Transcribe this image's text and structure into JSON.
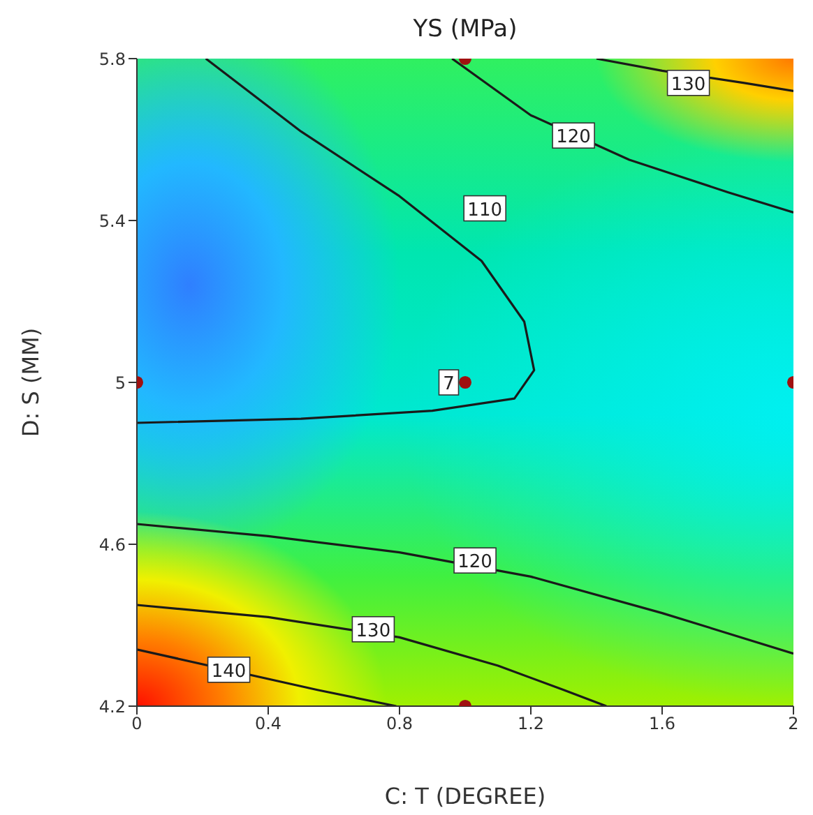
{
  "chart_data": {
    "type": "line",
    "title": "YS (MPa)",
    "xlabel": "C: T (DEGREE)",
    "ylabel": "D: S (MM)",
    "xlim": [
      0,
      2
    ],
    "xticks": [
      0,
      0.4,
      0.8,
      1.2,
      1.6,
      2
    ],
    "ylim": [
      4.2,
      5.8
    ],
    "yticks": [
      4.2,
      4.6,
      5,
      5.4,
      5.8
    ],
    "grid": false,
    "marker": "none",
    "line_style": "solid",
    "series": [
      {
        "color": "#1a1a1a",
        "x": [
          0.21,
          0.5,
          0.8,
          1.05,
          1.18,
          1.21,
          1.15,
          0.9,
          0.5,
          0
        ],
        "values": [
          5.8,
          5.62,
          5.46,
          5.3,
          5.15,
          5.03,
          4.96,
          4.93,
          4.91,
          4.9
        ]
      },
      {
        "color": "#1a1a1a",
        "x": [
          0.96,
          1.2,
          1.5,
          1.8,
          2
        ],
        "values": [
          5.8,
          5.66,
          5.55,
          5.47,
          5.42
        ]
      },
      {
        "color": "#1a1a1a",
        "x": [
          1.4,
          1.6,
          1.85,
          2
        ],
        "values": [
          5.8,
          5.77,
          5.74,
          5.72
        ]
      },
      {
        "color": "#1a1a1a",
        "x": [
          0,
          0.4,
          0.8,
          1.2,
          1.6,
          2
        ],
        "values": [
          4.65,
          4.62,
          4.58,
          4.52,
          4.43,
          4.33
        ]
      },
      {
        "color": "#1a1a1a",
        "x": [
          0,
          0.4,
          0.8,
          1.1,
          1.3,
          1.43
        ],
        "values": [
          4.45,
          4.42,
          4.37,
          4.3,
          4.24,
          4.2
        ]
      },
      {
        "color": "#1a1a1a",
        "x": [
          0,
          0.55,
          0.79
        ],
        "values": [
          4.34,
          4.24,
          4.2
        ]
      },
      {
        "type": "scatter",
        "marker": "circle",
        "color": "#a01010",
        "x": [
          1,
          0,
          1,
          2,
          1
        ],
        "values": [
          5.8,
          5,
          5,
          5,
          4.2
        ]
      }
    ],
    "annotations": [
      {
        "text": "110",
        "x": 1.06,
        "y": 5.43
      },
      {
        "text": "120",
        "x": 1.33,
        "y": 5.61
      },
      {
        "text": "130",
        "x": 1.68,
        "y": 5.74
      },
      {
        "text": "120",
        "x": 1.03,
        "y": 4.56
      },
      {
        "text": "130",
        "x": 0.72,
        "y": 4.39
      },
      {
        "text": "140",
        "x": 0.28,
        "y": 4.29
      },
      {
        "text": "7",
        "x": 0.95,
        "y": 5
      }
    ]
  }
}
